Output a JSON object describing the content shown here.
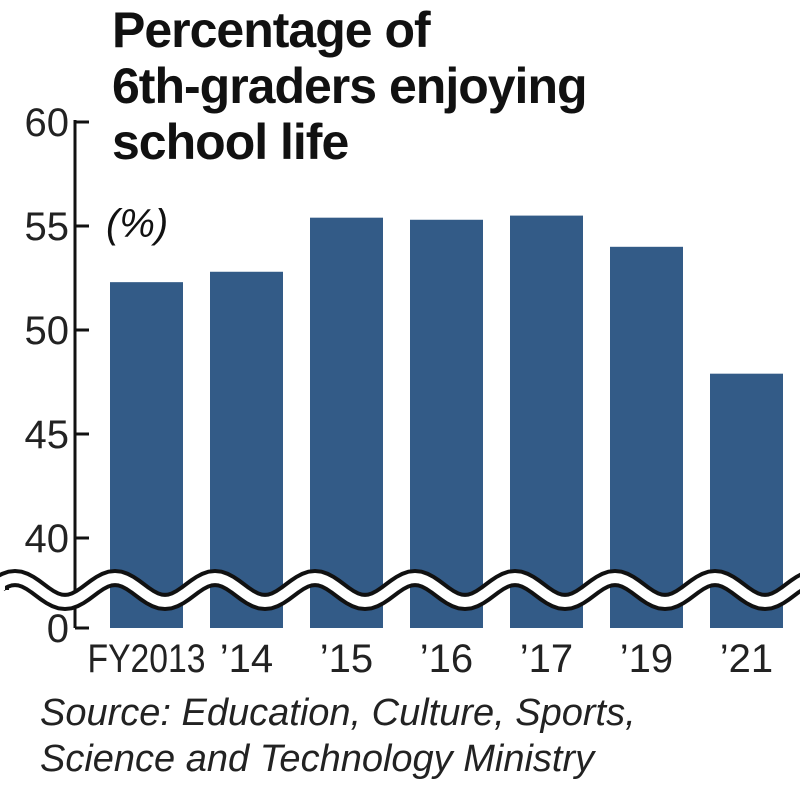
{
  "chart_data": {
    "type": "bar",
    "title": "Percentage of 6th-graders enjoying school life",
    "title_lines": [
      "Percentage of",
      "6th-graders enjoying",
      "school life"
    ],
    "unit": "(%)",
    "categories": [
      "FY2013",
      "’14",
      "’15",
      "’16",
      "’17",
      "’19",
      "’21"
    ],
    "values": [
      52.3,
      52.8,
      55.4,
      55.3,
      55.5,
      54.0,
      47.9
    ],
    "yticks": [
      "60",
      "55",
      "50",
      "45",
      "40",
      "0"
    ],
    "ylim": [
      0,
      60
    ],
    "axis_break": "between 0 and 40",
    "xlabel": "",
    "ylabel": "",
    "bar_color": "#335b87",
    "source_lines": [
      "Source: Education, Culture, Sports,",
      "Science and Technology Ministry"
    ]
  }
}
